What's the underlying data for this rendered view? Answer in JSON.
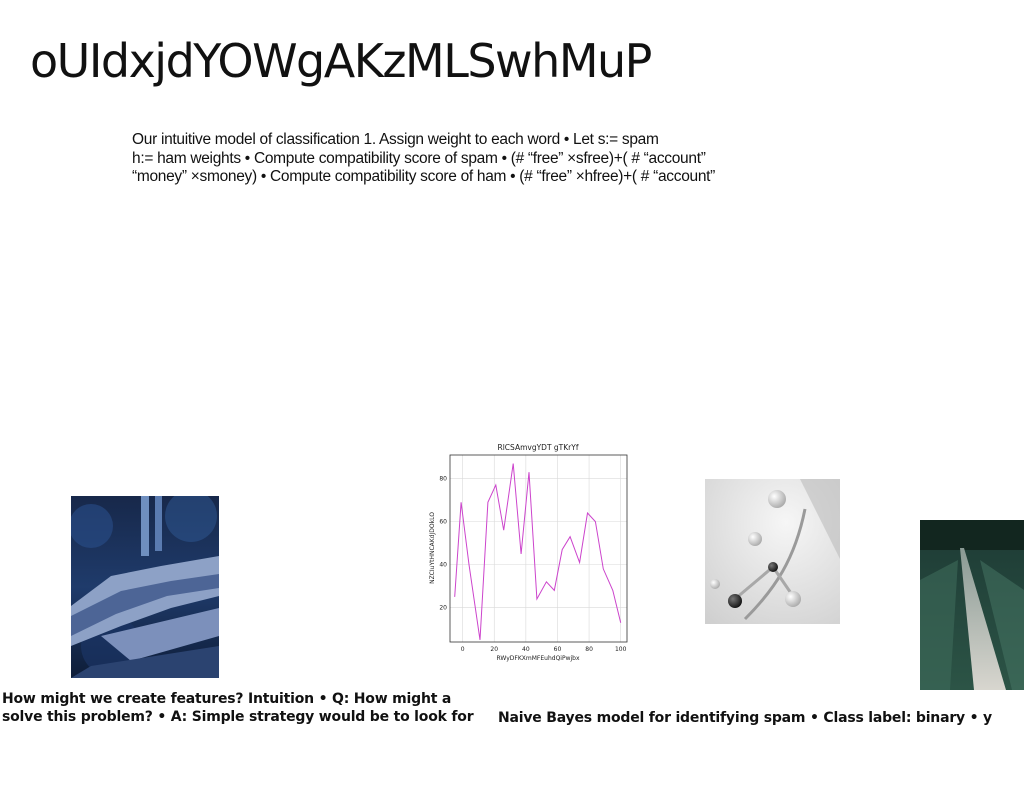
{
  "title": "oUIdxjdYOWgAKzMLSwhMuP",
  "body_lines": [
    "Our intuitive model of classification 1. Assign weight to each word • Let s:= spam",
    "h:= ham weights • Compute compatibility score of spam • (# “free” ×sfree)+( # “account”",
    "“money” ×smoney) • Compute compatibility score of ham • (# “free” ×hfree)+( # “account”"
  ],
  "caption_left": {
    "line1": "How might we create features? Intuition • Q: How might a",
    "line2": "solve this problem? • A: Simple strategy would be to look for"
  },
  "caption_right": "Naive Bayes model for identifying spam • Class label: binary • y",
  "images": {
    "forest": "photo of fallen log in blue-toned forest",
    "molecule": "grayscale molecular model",
    "path": "narrow path through green field"
  },
  "chart_data": {
    "type": "line",
    "title": "RlCSAmvgYDT gTKrYf",
    "xlabel": "RWyDFKXmMFEuhdQiPwjbx",
    "ylabel": "NZCIuYtHNCAKdJDOkLO",
    "color": "#cc44cc",
    "xlim": [
      -8,
      104
    ],
    "ylim": [
      4,
      91
    ],
    "xticks": [
      0,
      20,
      40,
      60,
      80,
      100
    ],
    "yticks": [
      20,
      40,
      60,
      80
    ],
    "grid": true,
    "x": [
      -5,
      -1,
      4,
      11,
      16,
      21,
      26,
      32,
      37,
      42,
      47,
      53,
      58,
      63,
      68,
      74,
      79,
      84,
      89,
      95,
      100
    ],
    "y": [
      25,
      69,
      40,
      5,
      69,
      77,
      56,
      87,
      45,
      83,
      24,
      32,
      28,
      47,
      53,
      41,
      64,
      60,
      38,
      28,
      13
    ]
  }
}
